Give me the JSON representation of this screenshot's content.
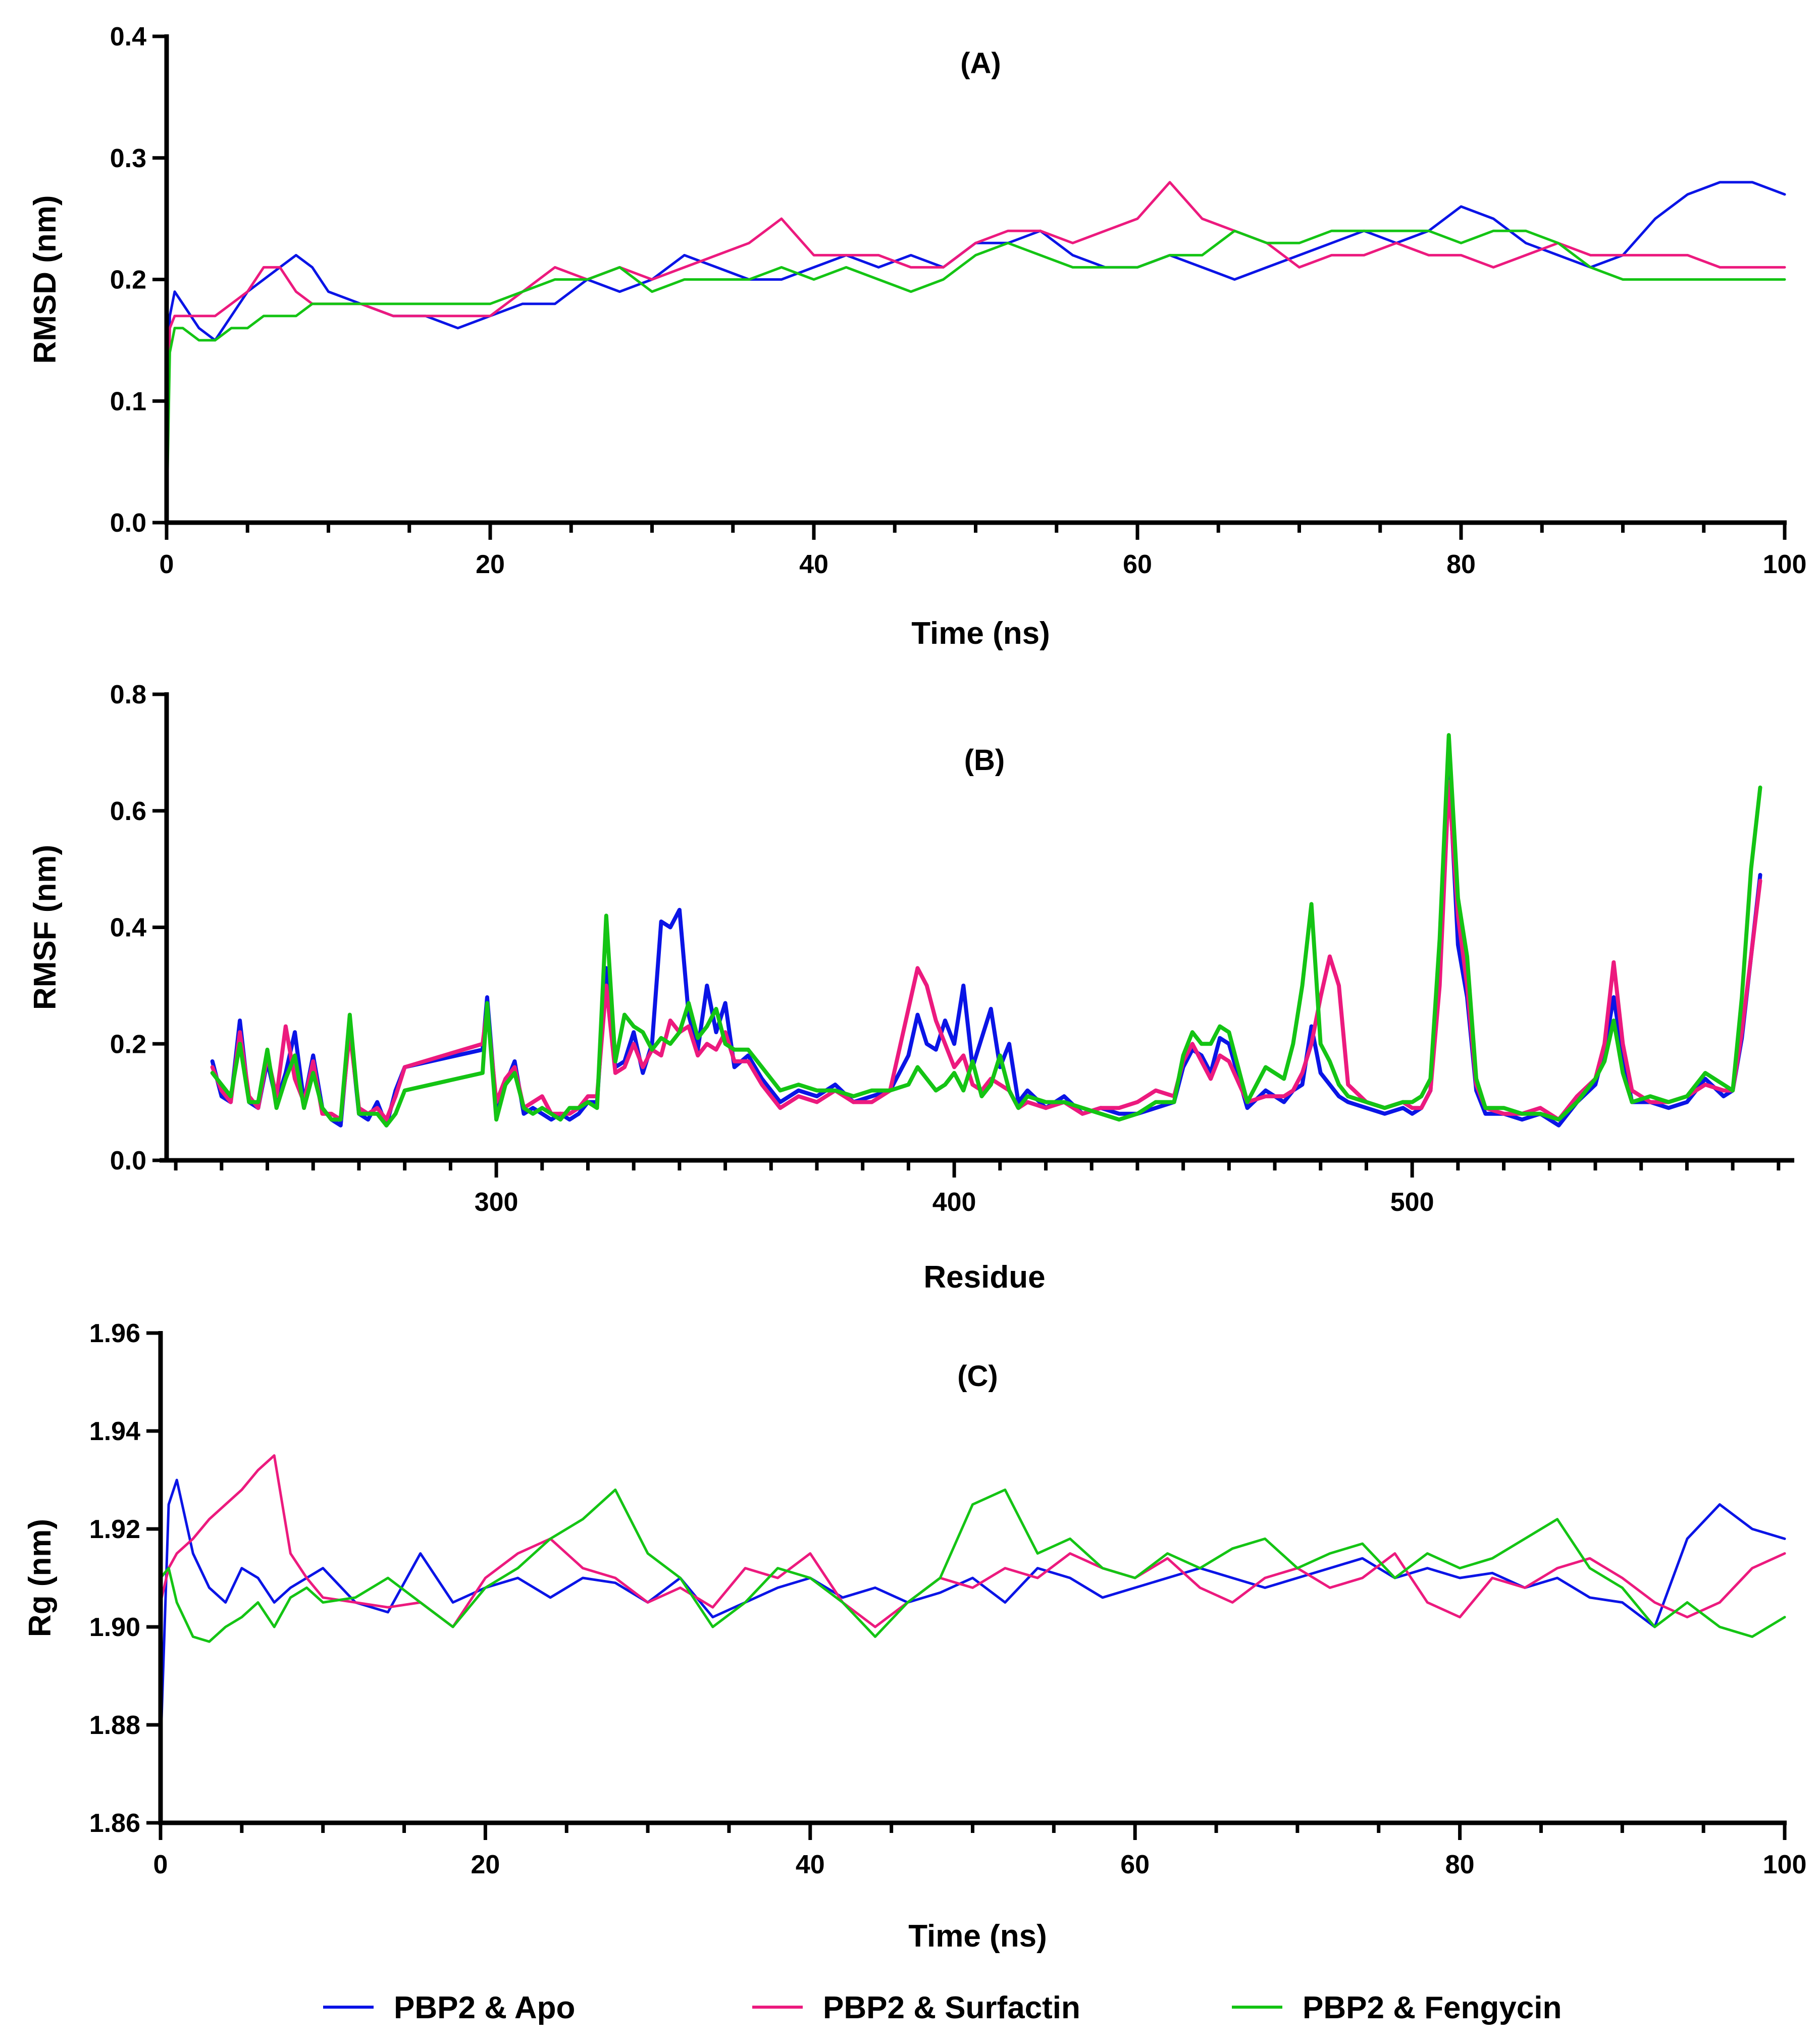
{
  "colors": {
    "apo": "#0a14e6",
    "surfactin": "#ec1a7e",
    "fengycin": "#14c414"
  },
  "legend": [
    {
      "key": "apo",
      "label": "PBP2 & Apo"
    },
    {
      "key": "surfactin",
      "label": "PBP2 & Surfactin"
    },
    {
      "key": "fengycin",
      "label": "PBP2 & Fengycin"
    }
  ],
  "chart_data": [
    {
      "id": "A",
      "type": "line",
      "title": "(A)",
      "xlabel": "Time (ns)",
      "ylabel": "RMSD (nm)",
      "xlim": [
        0,
        100
      ],
      "ylim": [
        0,
        0.4
      ],
      "xticks": [
        0,
        20,
        40,
        60,
        80,
        100
      ],
      "xtick_labels": [
        "0",
        "20",
        "40",
        "60",
        "80",
        "100"
      ],
      "yticks": [
        0,
        0.1,
        0.2,
        0.3,
        0.4
      ],
      "ytick_labels": [
        "0.0",
        "0.1",
        "0.2",
        "0.3",
        "0.4"
      ],
      "x": [
        0,
        0.2,
        0.5,
        1,
        2,
        3,
        4,
        5,
        6,
        7,
        8,
        9,
        10,
        12,
        14,
        16,
        18,
        20,
        22,
        24,
        26,
        28,
        30,
        32,
        34,
        36,
        38,
        40,
        42,
        44,
        46,
        48,
        50,
        52,
        54,
        56,
        58,
        60,
        62,
        64,
        66,
        68,
        70,
        72,
        74,
        76,
        78,
        80,
        82,
        84,
        86,
        88,
        90,
        92,
        94,
        96,
        98,
        100
      ],
      "series": [
        {
          "key": "apo",
          "name": "PBP2 & Apo",
          "values": [
            0.0,
            0.17,
            0.19,
            0.18,
            0.16,
            0.15,
            0.17,
            0.19,
            0.2,
            0.21,
            0.22,
            0.21,
            0.19,
            0.18,
            0.17,
            0.17,
            0.16,
            0.17,
            0.18,
            0.18,
            0.2,
            0.19,
            0.2,
            0.22,
            0.21,
            0.2,
            0.2,
            0.21,
            0.22,
            0.21,
            0.22,
            0.21,
            0.23,
            0.23,
            0.24,
            0.22,
            0.21,
            0.21,
            0.22,
            0.21,
            0.2,
            0.21,
            0.22,
            0.23,
            0.24,
            0.23,
            0.24,
            0.26,
            0.25,
            0.23,
            0.22,
            0.21,
            0.22,
            0.25,
            0.27,
            0.28,
            0.28,
            0.27
          ]
        },
        {
          "key": "surfactin",
          "name": "PBP2 & Surfactin",
          "values": [
            0.0,
            0.16,
            0.17,
            0.17,
            0.17,
            0.17,
            0.18,
            0.19,
            0.21,
            0.21,
            0.19,
            0.18,
            0.18,
            0.18,
            0.17,
            0.17,
            0.17,
            0.17,
            0.19,
            0.21,
            0.2,
            0.21,
            0.2,
            0.21,
            0.22,
            0.23,
            0.25,
            0.22,
            0.22,
            0.22,
            0.21,
            0.21,
            0.23,
            0.24,
            0.24,
            0.23,
            0.24,
            0.25,
            0.28,
            0.25,
            0.24,
            0.23,
            0.21,
            0.22,
            0.22,
            0.23,
            0.22,
            0.22,
            0.21,
            0.22,
            0.23,
            0.22,
            0.22,
            0.22,
            0.22,
            0.21,
            0.21,
            0.21
          ]
        },
        {
          "key": "fengycin",
          "name": "PBP2 & Fengycin",
          "values": [
            0.0,
            0.14,
            0.16,
            0.16,
            0.15,
            0.15,
            0.16,
            0.16,
            0.17,
            0.17,
            0.17,
            0.18,
            0.18,
            0.18,
            0.18,
            0.18,
            0.18,
            0.18,
            0.19,
            0.2,
            0.2,
            0.21,
            0.19,
            0.2,
            0.2,
            0.2,
            0.21,
            0.2,
            0.21,
            0.2,
            0.19,
            0.2,
            0.22,
            0.23,
            0.22,
            0.21,
            0.21,
            0.21,
            0.22,
            0.22,
            0.24,
            0.23,
            0.23,
            0.24,
            0.24,
            0.24,
            0.24,
            0.23,
            0.24,
            0.24,
            0.23,
            0.21,
            0.2,
            0.2,
            0.2,
            0.2,
            0.2,
            0.2
          ]
        }
      ]
    },
    {
      "id": "B",
      "type": "line",
      "title": "(B)",
      "xlabel": "Residue",
      "ylabel": "RMSF (nm)",
      "xlim": [
        228,
        583
      ],
      "ylim": [
        0,
        0.8
      ],
      "xticks": [
        300,
        400,
        500
      ],
      "xtick_labels": [
        "300",
        "400",
        "500"
      ],
      "yticks": [
        0,
        0.2,
        0.4,
        0.6,
        0.8
      ],
      "ytick_labels": [
        "0.0",
        "0.2",
        "0.4",
        "0.6",
        "0.8"
      ],
      "x": [
        238,
        240,
        242,
        244,
        246,
        248,
        250,
        252,
        254,
        256,
        258,
        260,
        262,
        264,
        266,
        268,
        270,
        272,
        274,
        276,
        278,
        280,
        297,
        298,
        300,
        302,
        304,
        306,
        308,
        310,
        312,
        314,
        316,
        318,
        320,
        322,
        324,
        326,
        328,
        330,
        332,
        334,
        336,
        338,
        340,
        342,
        344,
        346,
        348,
        350,
        352,
        355,
        358,
        362,
        366,
        370,
        374,
        378,
        382,
        386,
        390,
        392,
        394,
        396,
        398,
        400,
        402,
        404,
        406,
        408,
        410,
        412,
        414,
        416,
        420,
        424,
        428,
        432,
        436,
        440,
        444,
        448,
        450,
        452,
        454,
        456,
        458,
        460,
        464,
        468,
        472,
        474,
        476,
        478,
        480,
        482,
        484,
        486,
        490,
        494,
        498,
        500,
        502,
        504,
        506,
        508,
        510,
        512,
        514,
        516,
        520,
        524,
        528,
        532,
        536,
        540,
        542,
        544,
        546,
        548,
        552,
        556,
        560,
        564,
        568,
        570,
        572,
        574,
        576
      ],
      "series": [
        {
          "key": "apo",
          "name": "PBP2 & Apo",
          "values": [
            0.17,
            0.11,
            0.1,
            0.24,
            0.1,
            0.09,
            0.17,
            0.1,
            0.15,
            0.22,
            0.1,
            0.18,
            0.09,
            0.07,
            0.06,
            0.23,
            0.08,
            0.07,
            0.1,
            0.06,
            0.12,
            0.16,
            0.19,
            0.28,
            0.09,
            0.13,
            0.17,
            0.08,
            0.09,
            0.08,
            0.07,
            0.08,
            0.07,
            0.08,
            0.1,
            0.1,
            0.33,
            0.16,
            0.17,
            0.22,
            0.15,
            0.2,
            0.41,
            0.4,
            0.43,
            0.25,
            0.19,
            0.3,
            0.22,
            0.27,
            0.16,
            0.18,
            0.14,
            0.1,
            0.12,
            0.11,
            0.13,
            0.1,
            0.11,
            0.12,
            0.18,
            0.25,
            0.2,
            0.19,
            0.24,
            0.2,
            0.3,
            0.16,
            0.21,
            0.26,
            0.16,
            0.2,
            0.1,
            0.12,
            0.09,
            0.11,
            0.08,
            0.09,
            0.08,
            0.08,
            0.09,
            0.1,
            0.16,
            0.19,
            0.18,
            0.15,
            0.21,
            0.2,
            0.09,
            0.12,
            0.1,
            0.12,
            0.13,
            0.23,
            0.15,
            0.13,
            0.11,
            0.1,
            0.09,
            0.08,
            0.09,
            0.08,
            0.09,
            0.12,
            0.35,
            0.68,
            0.37,
            0.28,
            0.12,
            0.08,
            0.08,
            0.07,
            0.08,
            0.06,
            0.1,
            0.13,
            0.19,
            0.28,
            0.18,
            0.1,
            0.1,
            0.09,
            0.1,
            0.14,
            0.11,
            0.12,
            0.21,
            0.35,
            0.49
          ]
        },
        {
          "key": "surfactin",
          "name": "PBP2 & Surfactin",
          "values": [
            0.16,
            0.12,
            0.1,
            0.22,
            0.11,
            0.09,
            0.18,
            0.11,
            0.23,
            0.14,
            0.1,
            0.17,
            0.08,
            0.08,
            0.07,
            0.22,
            0.09,
            0.08,
            0.09,
            0.07,
            0.11,
            0.16,
            0.2,
            0.26,
            0.1,
            0.14,
            0.16,
            0.09,
            0.1,
            0.11,
            0.08,
            0.08,
            0.08,
            0.09,
            0.11,
            0.11,
            0.3,
            0.15,
            0.16,
            0.2,
            0.16,
            0.19,
            0.18,
            0.24,
            0.22,
            0.23,
            0.18,
            0.2,
            0.19,
            0.22,
            0.17,
            0.17,
            0.13,
            0.09,
            0.11,
            0.1,
            0.12,
            0.1,
            0.1,
            0.12,
            0.26,
            0.33,
            0.3,
            0.24,
            0.2,
            0.16,
            0.18,
            0.13,
            0.12,
            0.14,
            0.13,
            0.12,
            0.09,
            0.1,
            0.09,
            0.1,
            0.08,
            0.09,
            0.09,
            0.1,
            0.12,
            0.11,
            0.17,
            0.2,
            0.17,
            0.14,
            0.18,
            0.17,
            0.1,
            0.11,
            0.11,
            0.12,
            0.15,
            0.2,
            0.28,
            0.35,
            0.3,
            0.13,
            0.1,
            0.09,
            0.1,
            0.09,
            0.09,
            0.12,
            0.3,
            0.65,
            0.42,
            0.3,
            0.13,
            0.09,
            0.08,
            0.08,
            0.09,
            0.07,
            0.11,
            0.14,
            0.2,
            0.34,
            0.2,
            0.12,
            0.1,
            0.1,
            0.11,
            0.13,
            0.12,
            0.12,
            0.22,
            0.35,
            0.48
          ]
        },
        {
          "key": "fengycin",
          "name": "PBP2 & Fengycin",
          "values": [
            0.15,
            0.13,
            0.11,
            0.2,
            0.1,
            0.1,
            0.19,
            0.09,
            0.14,
            0.18,
            0.09,
            0.15,
            0.09,
            0.07,
            0.07,
            0.25,
            0.08,
            0.08,
            0.08,
            0.06,
            0.08,
            0.12,
            0.15,
            0.27,
            0.07,
            0.13,
            0.15,
            0.09,
            0.08,
            0.09,
            0.08,
            0.07,
            0.09,
            0.09,
            0.1,
            0.09,
            0.42,
            0.17,
            0.25,
            0.23,
            0.22,
            0.19,
            0.21,
            0.2,
            0.22,
            0.27,
            0.21,
            0.23,
            0.26,
            0.2,
            0.19,
            0.19,
            0.16,
            0.12,
            0.13,
            0.12,
            0.12,
            0.11,
            0.12,
            0.12,
            0.13,
            0.16,
            0.14,
            0.12,
            0.13,
            0.15,
            0.12,
            0.17,
            0.11,
            0.13,
            0.18,
            0.12,
            0.09,
            0.11,
            0.1,
            0.1,
            0.09,
            0.08,
            0.07,
            0.08,
            0.1,
            0.1,
            0.18,
            0.22,
            0.2,
            0.2,
            0.23,
            0.22,
            0.1,
            0.16,
            0.14,
            0.2,
            0.3,
            0.44,
            0.2,
            0.17,
            0.13,
            0.11,
            0.1,
            0.09,
            0.1,
            0.1,
            0.11,
            0.14,
            0.38,
            0.73,
            0.45,
            0.35,
            0.14,
            0.09,
            0.09,
            0.08,
            0.08,
            0.07,
            0.1,
            0.14,
            0.17,
            0.24,
            0.15,
            0.1,
            0.11,
            0.1,
            0.11,
            0.15,
            0.13,
            0.12,
            0.28,
            0.5,
            0.64
          ]
        }
      ]
    },
    {
      "id": "C",
      "type": "line",
      "title": "(C)",
      "xlabel": "Time (ns)",
      "ylabel": "Rg (nm)",
      "xlim": [
        0,
        100
      ],
      "ylim": [
        1.86,
        1.96
      ],
      "xticks": [
        0,
        20,
        40,
        60,
        80,
        100
      ],
      "xtick_labels": [
        "0",
        "20",
        "40",
        "60",
        "80",
        "100"
      ],
      "yticks": [
        1.86,
        1.88,
        1.9,
        1.92,
        1.94,
        1.96
      ],
      "ytick_labels": [
        "1.86",
        "1.88",
        "1.90",
        "1.92",
        "1.94",
        "1.96"
      ],
      "x": [
        0,
        0.5,
        1,
        2,
        3,
        4,
        5,
        6,
        7,
        8,
        9,
        10,
        12,
        14,
        16,
        18,
        20,
        22,
        24,
        26,
        28,
        30,
        32,
        34,
        36,
        38,
        40,
        42,
        44,
        46,
        48,
        50,
        52,
        54,
        56,
        58,
        60,
        62,
        64,
        66,
        68,
        70,
        72,
        74,
        76,
        78,
        80,
        82,
        84,
        86,
        88,
        90,
        92,
        94,
        96,
        98,
        100
      ],
      "series": [
        {
          "key": "apo",
          "name": "PBP2 & Apo",
          "values": [
            1.875,
            1.925,
            1.93,
            1.915,
            1.908,
            1.905,
            1.912,
            1.91,
            1.905,
            1.908,
            1.91,
            1.912,
            1.905,
            1.903,
            1.915,
            1.905,
            1.908,
            1.91,
            1.906,
            1.91,
            1.909,
            1.905,
            1.91,
            1.902,
            1.905,
            1.908,
            1.91,
            1.906,
            1.908,
            1.905,
            1.907,
            1.91,
            1.905,
            1.912,
            1.91,
            1.906,
            1.908,
            1.91,
            1.912,
            1.91,
            1.908,
            1.91,
            1.912,
            1.914,
            1.91,
            1.912,
            1.91,
            1.911,
            1.908,
            1.91,
            1.906,
            1.905,
            1.9,
            1.918,
            1.925,
            1.92,
            1.918
          ]
        },
        {
          "key": "surfactin",
          "name": "PBP2 & Surfactin",
          "values": [
            1.905,
            1.912,
            1.915,
            1.918,
            1.922,
            1.925,
            1.928,
            1.932,
            1.935,
            1.915,
            1.91,
            1.906,
            1.905,
            1.904,
            1.905,
            1.9,
            1.91,
            1.915,
            1.918,
            1.912,
            1.91,
            1.905,
            1.908,
            1.904,
            1.912,
            1.91,
            1.915,
            1.905,
            1.9,
            1.905,
            1.91,
            1.908,
            1.912,
            1.91,
            1.915,
            1.912,
            1.91,
            1.914,
            1.908,
            1.905,
            1.91,
            1.912,
            1.908,
            1.91,
            1.915,
            1.905,
            1.902,
            1.91,
            1.908,
            1.912,
            1.914,
            1.91,
            1.905,
            1.902,
            1.905,
            1.912,
            1.915
          ]
        },
        {
          "key": "fengycin",
          "name": "PBP2 & Fengycin",
          "values": [
            1.91,
            1.912,
            1.905,
            1.898,
            1.897,
            1.9,
            1.902,
            1.905,
            1.9,
            1.906,
            1.908,
            1.905,
            1.906,
            1.91,
            1.905,
            1.9,
            1.908,
            1.912,
            1.918,
            1.922,
            1.928,
            1.915,
            1.91,
            1.9,
            1.905,
            1.912,
            1.91,
            1.905,
            1.898,
            1.905,
            1.91,
            1.925,
            1.928,
            1.915,
            1.918,
            1.912,
            1.91,
            1.915,
            1.912,
            1.916,
            1.918,
            1.912,
            1.915,
            1.917,
            1.91,
            1.915,
            1.912,
            1.914,
            1.918,
            1.922,
            1.912,
            1.908,
            1.9,
            1.905,
            1.9,
            1.898,
            1.902
          ]
        }
      ]
    }
  ]
}
